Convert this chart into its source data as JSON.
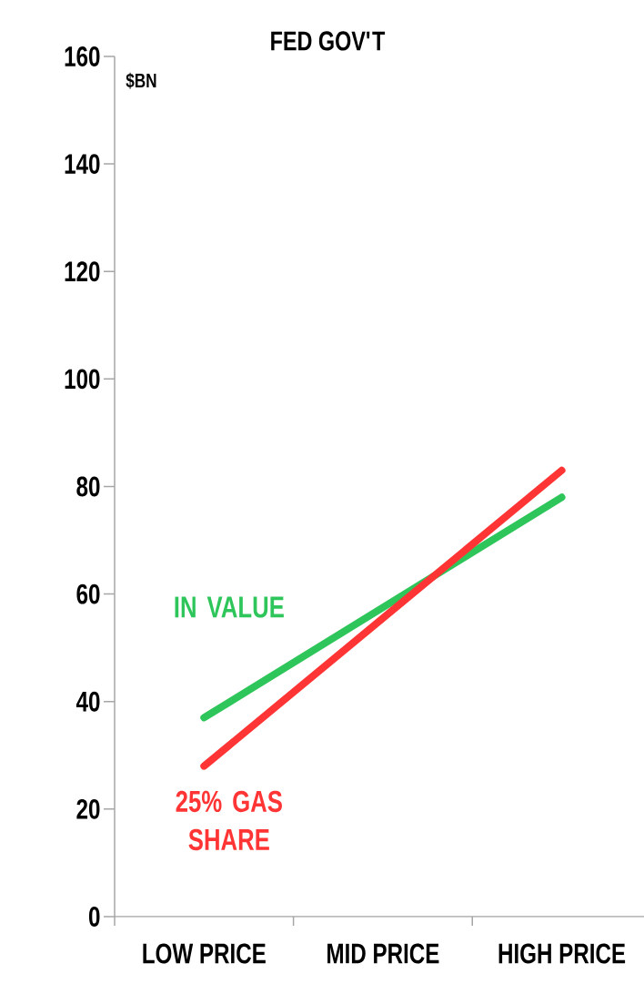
{
  "chart_data": {
    "type": "line",
    "title": "FED GOV'T",
    "ylabel": "$BN",
    "categories": [
      "LOW PRICE",
      "MID PRICE",
      "HIGH PRICE"
    ],
    "series": [
      {
        "name": "IN VALUE",
        "color": "#2ec55a",
        "values": [
          37,
          57.5,
          78
        ]
      },
      {
        "name": "25% GAS SHARE",
        "color": "#ff3535",
        "values": [
          28,
          55.5,
          83
        ]
      }
    ],
    "ylim": [
      0,
      160
    ],
    "yticks": [
      0,
      20,
      40,
      60,
      80,
      100,
      120,
      140,
      160
    ],
    "grid": false,
    "legend": false,
    "marker": "none",
    "line_style": "solid"
  }
}
